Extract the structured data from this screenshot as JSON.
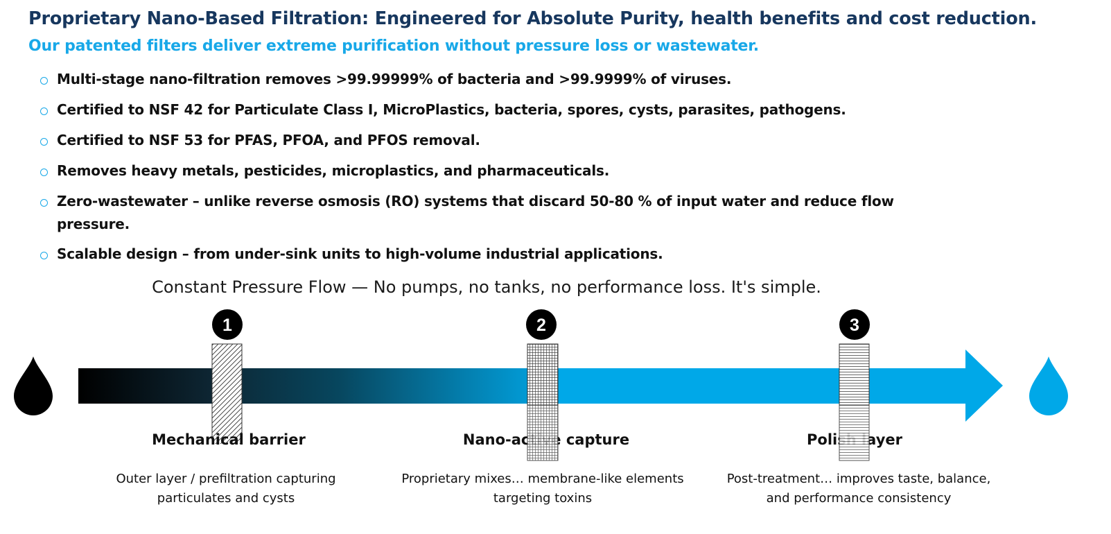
{
  "header": {
    "title": "Proprietary Nano-Based Filtration: Engineered for Absolute Purity, health benefits and cost reduction.",
    "subtitle": "Our patented filters deliver extreme purification without pressure loss or wastewater."
  },
  "bullets": [
    "Multi-stage nano-filtration removes >99.99999% of bacteria and >99.9999% of viruses.",
    "Certified to NSF 42 for Particulate Class I, MicroPlastics, bacteria, spores, cysts, parasites, pathogens.",
    "Certified to NSF 53 for PFAS, PFOA, and PFOS removal.",
    "Removes heavy metals, pesticides, microplastics, and pharmaceuticals.",
    "Zero-wastewater – unlike reverse osmosis (RO) systems that discard 50-80 % of input water and reduce flow pressure.",
    "Scalable design – from under-sink units to high-volume industrial applications."
  ],
  "flow": {
    "caption": "Constant Pressure Flow — No pumps, no tanks, no performance loss. It's simple.",
    "stages": [
      {
        "number": "1",
        "title": "Mechanical barrier",
        "description": "Outer layer / prefiltration capturing particulates and cysts",
        "pattern": "diagonal-hatch"
      },
      {
        "number": "2",
        "title": "Nano-active capture",
        "description": "Proprietary mixes… membrane-like elements targeting toxins",
        "pattern": "grid-mesh"
      },
      {
        "number": "3",
        "title": "Polish layer",
        "description": "Post-treatment… improves taste, balance, and performance consistency",
        "pattern": "horizontal-lines"
      }
    ],
    "input_drop_icon": "water-drop-icon",
    "output_drop_icon": "water-drop-icon"
  },
  "colors": {
    "title": "#17375e",
    "accent": "#18a8e8",
    "dirty_water": "#000000",
    "clean_water": "#00a8e8"
  }
}
